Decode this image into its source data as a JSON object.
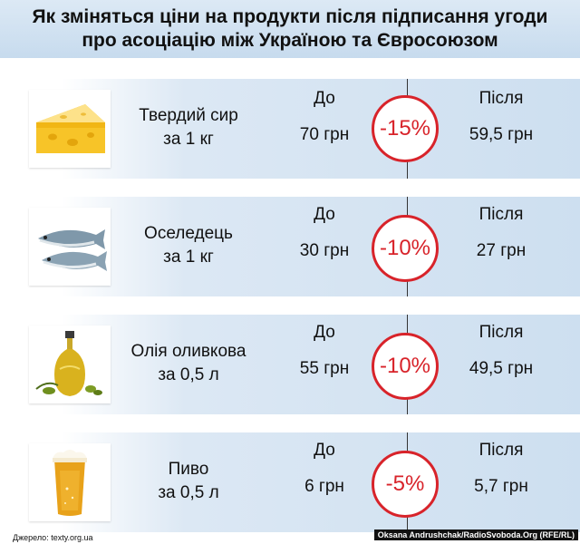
{
  "title": {
    "line1": "Як зміняться ціни на продукти після підписання угоди",
    "line2": "про асоціацію між Україною та Євросоюзом"
  },
  "labels": {
    "before": "До",
    "after": "Після"
  },
  "items": [
    {
      "name_line1": "Твердий сир",
      "name_line2": "за 1 кг",
      "before": "70 грн",
      "change": "-15%",
      "after": "59,5 грн",
      "icon": "cheese-icon"
    },
    {
      "name_line1": "Оселедець",
      "name_line2": "за 1 кг",
      "before": "30 грн",
      "change": "-10%",
      "after": "27 грн",
      "icon": "herring-icon"
    },
    {
      "name_line1": "Олія оливкова",
      "name_line2": "за 0,5 л",
      "before": "55 грн",
      "change": "-10%",
      "after": "49,5 грн",
      "icon": "olive-oil-icon"
    },
    {
      "name_line1": "Пиво",
      "name_line2": "за 0,5 л",
      "before": "6 грн",
      "change": "-5%",
      "after": "5,7 грн",
      "icon": "beer-icon"
    }
  ],
  "footer": {
    "source": "Джерело: texty.org.ua",
    "credit": "Oksana Andrushchak/RadioSvoboda.Org (RFE/RL)"
  },
  "colors": {
    "accent": "#d8232a",
    "title_bg": "#c7dbee",
    "row_bg": "#cddff0"
  }
}
